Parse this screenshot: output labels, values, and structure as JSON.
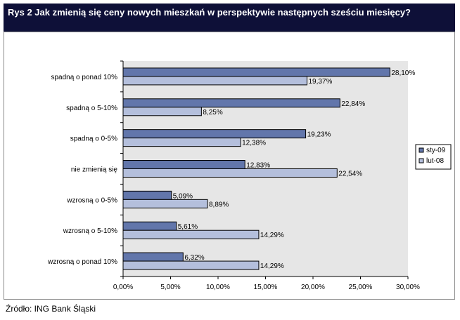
{
  "title": "Rys 2 Jak zmienią się ceny nowych mieszkań w perspektywie następnych sześciu miesięcy?",
  "source": "Źródło: ING Bank Śląski",
  "colors": {
    "header_bg": "#0e1038",
    "plot_bg": "#e6e6e6",
    "series_sty09": "#6276ab",
    "series_lut08": "#b4bfdc"
  },
  "chart_data": {
    "type": "bar",
    "orientation": "horizontal",
    "categories": [
      "spadną o ponad 10%",
      "spadną o 5-10%",
      "spadną o 0-5%",
      "nie zmienią się",
      "wzrosną o 0-5%",
      "wzrosną o 5-10%",
      "wzrosną o ponad 10%"
    ],
    "series": [
      {
        "name": "sty-09",
        "color": "#6276ab",
        "values": [
          28.1,
          22.84,
          19.23,
          12.83,
          5.09,
          5.61,
          6.32
        ],
        "labels": [
          "28,10%",
          "22,84%",
          "19,23%",
          "12,83%",
          "5,09%",
          "5,61%",
          "6,32%"
        ]
      },
      {
        "name": "lut-08",
        "color": "#b4bfdc",
        "values": [
          19.37,
          8.25,
          12.38,
          22.54,
          8.89,
          14.29,
          14.29
        ],
        "labels": [
          "19,37%",
          "8,25%",
          "12,38%",
          "22,54%",
          "8,89%",
          "14,29%",
          "14,29%"
        ]
      }
    ],
    "xlim": [
      0,
      30
    ],
    "xticks": [
      "0,00%",
      "5,00%",
      "10,00%",
      "15,00%",
      "20,00%",
      "25,00%",
      "30,00%"
    ],
    "legend_position": "right",
    "grid": false
  }
}
